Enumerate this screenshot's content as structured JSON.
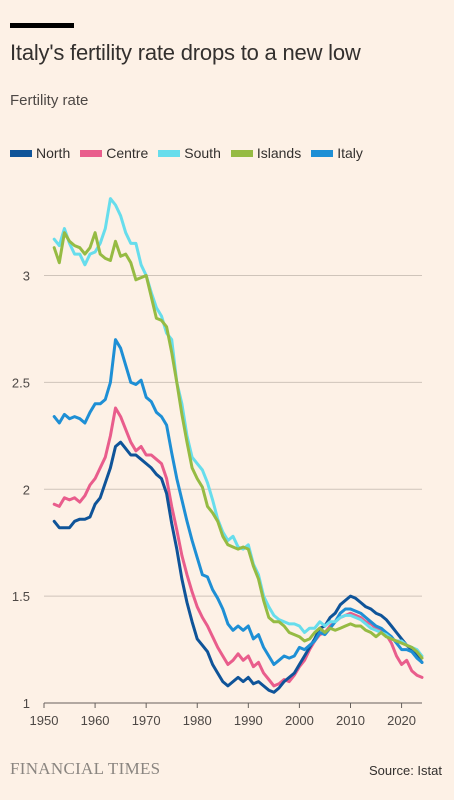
{
  "header": {
    "title": "Italy's fertility rate drops to a new low",
    "subtitle": "Fertility rate"
  },
  "footer": {
    "brand": "FINANCIAL TIMES",
    "source": "Source: Istat"
  },
  "chart_data": {
    "type": "line",
    "title": "Italy's fertility rate drops to a new low",
    "ylabel": "Fertility rate",
    "xlim": [
      1950,
      2024
    ],
    "ylim": [
      1,
      3.4
    ],
    "x_ticks": [
      1950,
      1960,
      1970,
      1980,
      1990,
      2000,
      2010,
      2020
    ],
    "y_ticks": [
      1,
      1.5,
      2,
      2.5,
      3
    ],
    "y_tick_labels": [
      "1",
      "1.5",
      "2",
      "2.5",
      "3"
    ],
    "grid": "horizontal",
    "legend_position": "top-left",
    "x": [
      1952,
      1953,
      1954,
      1955,
      1956,
      1957,
      1958,
      1959,
      1960,
      1961,
      1962,
      1963,
      1964,
      1965,
      1966,
      1967,
      1968,
      1969,
      1970,
      1971,
      1972,
      1973,
      1974,
      1975,
      1976,
      1977,
      1978,
      1979,
      1980,
      1981,
      1982,
      1983,
      1984,
      1985,
      1986,
      1987,
      1988,
      1989,
      1990,
      1991,
      1992,
      1993,
      1994,
      1995,
      1996,
      1997,
      1998,
      1999,
      2000,
      2001,
      2002,
      2003,
      2004,
      2005,
      2006,
      2007,
      2008,
      2009,
      2010,
      2011,
      2012,
      2013,
      2014,
      2015,
      2016,
      2017,
      2018,
      2019,
      2020,
      2021,
      2022,
      2023,
      2024
    ],
    "series": [
      {
        "name": "North",
        "color": "#0f5499",
        "values": [
          1.85,
          1.82,
          1.82,
          1.82,
          1.85,
          1.86,
          1.86,
          1.87,
          1.93,
          1.96,
          2.03,
          2.1,
          2.2,
          2.22,
          2.19,
          2.16,
          2.16,
          2.14,
          2.12,
          2.1,
          2.07,
          2.05,
          1.98,
          1.84,
          1.72,
          1.58,
          1.47,
          1.38,
          1.3,
          1.27,
          1.24,
          1.18,
          1.14,
          1.1,
          1.08,
          1.1,
          1.12,
          1.1,
          1.12,
          1.09,
          1.1,
          1.08,
          1.06,
          1.05,
          1.07,
          1.1,
          1.12,
          1.14,
          1.18,
          1.22,
          1.26,
          1.3,
          1.35,
          1.36,
          1.4,
          1.42,
          1.46,
          1.48,
          1.5,
          1.49,
          1.47,
          1.45,
          1.44,
          1.42,
          1.41,
          1.39,
          1.36,
          1.33,
          1.3,
          1.27,
          1.25,
          1.22,
          1.19
        ]
      },
      {
        "name": "Centre",
        "color": "#e95d8c",
        "values": [
          1.93,
          1.92,
          1.96,
          1.95,
          1.96,
          1.94,
          1.97,
          2.02,
          2.05,
          2.1,
          2.15,
          2.25,
          2.38,
          2.34,
          2.28,
          2.22,
          2.18,
          2.2,
          2.16,
          2.16,
          2.14,
          2.12,
          2.05,
          1.92,
          1.81,
          1.69,
          1.6,
          1.52,
          1.45,
          1.4,
          1.36,
          1.31,
          1.26,
          1.22,
          1.18,
          1.2,
          1.23,
          1.2,
          1.22,
          1.17,
          1.19,
          1.14,
          1.11,
          1.08,
          1.09,
          1.11,
          1.1,
          1.13,
          1.17,
          1.2,
          1.25,
          1.29,
          1.32,
          1.33,
          1.36,
          1.38,
          1.4,
          1.41,
          1.42,
          1.41,
          1.4,
          1.38,
          1.37,
          1.35,
          1.34,
          1.32,
          1.28,
          1.22,
          1.18,
          1.2,
          1.15,
          1.13,
          1.12
        ]
      },
      {
        "name": "South",
        "color": "#67ddec",
        "values": [
          3.17,
          3.14,
          3.22,
          3.15,
          3.1,
          3.1,
          3.05,
          3.1,
          3.11,
          3.15,
          3.22,
          3.36,
          3.33,
          3.28,
          3.2,
          3.15,
          3.15,
          3.05,
          3.0,
          2.92,
          2.85,
          2.81,
          2.73,
          2.7,
          2.5,
          2.4,
          2.25,
          2.15,
          2.12,
          2.09,
          2.03,
          1.95,
          1.86,
          1.8,
          1.76,
          1.78,
          1.73,
          1.72,
          1.74,
          1.65,
          1.6,
          1.5,
          1.45,
          1.41,
          1.39,
          1.38,
          1.37,
          1.37,
          1.36,
          1.33,
          1.35,
          1.35,
          1.38,
          1.36,
          1.38,
          1.38,
          1.4,
          1.41,
          1.41,
          1.4,
          1.39,
          1.37,
          1.35,
          1.34,
          1.33,
          1.32,
          1.3,
          1.29,
          1.29,
          1.27,
          1.26,
          1.25,
          1.22
        ]
      },
      {
        "name": "Islands",
        "color": "#96bb43",
        "values": [
          3.13,
          3.06,
          3.2,
          3.16,
          3.14,
          3.13,
          3.1,
          3.13,
          3.2,
          3.1,
          3.08,
          3.07,
          3.16,
          3.09,
          3.1,
          3.06,
          2.98,
          2.99,
          3.0,
          2.9,
          2.8,
          2.79,
          2.76,
          2.64,
          2.5,
          2.35,
          2.22,
          2.1,
          2.05,
          2.01,
          1.92,
          1.89,
          1.85,
          1.78,
          1.74,
          1.73,
          1.72,
          1.73,
          1.72,
          1.64,
          1.58,
          1.48,
          1.4,
          1.38,
          1.38,
          1.36,
          1.33,
          1.32,
          1.31,
          1.29,
          1.3,
          1.33,
          1.35,
          1.33,
          1.35,
          1.34,
          1.35,
          1.36,
          1.37,
          1.36,
          1.36,
          1.34,
          1.33,
          1.31,
          1.33,
          1.31,
          1.3,
          1.29,
          1.28,
          1.27,
          1.26,
          1.24,
          1.21
        ]
      },
      {
        "name": "Italy",
        "color": "#1e8fd5",
        "values": [
          2.34,
          2.31,
          2.35,
          2.33,
          2.34,
          2.33,
          2.31,
          2.36,
          2.4,
          2.4,
          2.42,
          2.5,
          2.7,
          2.66,
          2.58,
          2.5,
          2.49,
          2.51,
          2.43,
          2.41,
          2.36,
          2.34,
          2.3,
          2.17,
          2.05,
          1.95,
          1.85,
          1.76,
          1.68,
          1.6,
          1.59,
          1.53,
          1.49,
          1.44,
          1.37,
          1.34,
          1.36,
          1.34,
          1.36,
          1.3,
          1.32,
          1.26,
          1.22,
          1.18,
          1.2,
          1.22,
          1.21,
          1.22,
          1.26,
          1.25,
          1.27,
          1.29,
          1.33,
          1.32,
          1.35,
          1.38,
          1.42,
          1.44,
          1.44,
          1.43,
          1.42,
          1.4,
          1.38,
          1.36,
          1.35,
          1.33,
          1.31,
          1.28,
          1.25,
          1.25,
          1.24,
          1.21,
          1.19
        ]
      }
    ]
  }
}
